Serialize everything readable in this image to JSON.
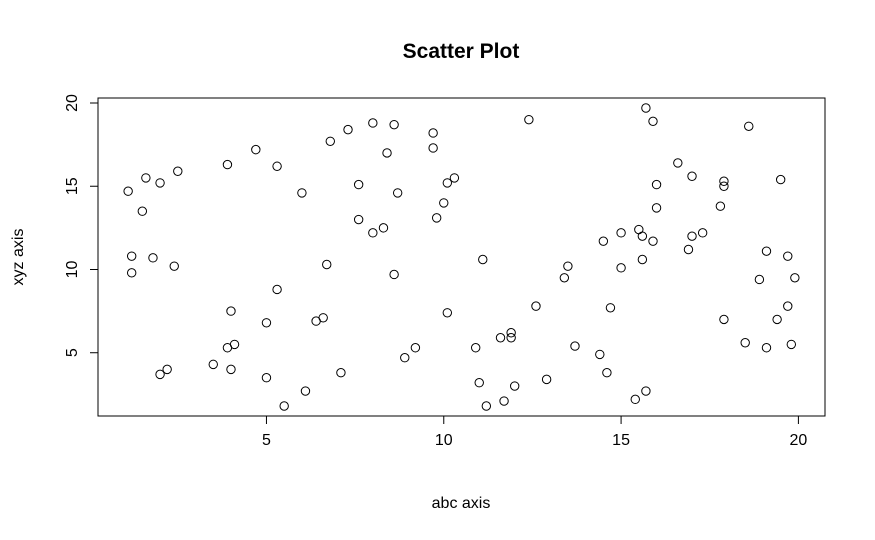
{
  "chart_data": {
    "type": "scatter",
    "title": "Scatter Plot",
    "xlabel": "abc axis",
    "ylabel": "xyz axis",
    "xlim": [
      0.25,
      20.75
    ],
    "ylim": [
      1.2,
      20.3
    ],
    "xticks": [
      5,
      10,
      15,
      20
    ],
    "yticks": [
      5,
      10,
      15,
      20
    ],
    "grid": false,
    "points": [
      [
        1.1,
        14.7
      ],
      [
        1.2,
        10.8
      ],
      [
        1.2,
        9.8
      ],
      [
        1.5,
        13.5
      ],
      [
        1.6,
        15.5
      ],
      [
        1.8,
        10.7
      ],
      [
        2.0,
        15.2
      ],
      [
        2.0,
        3.7
      ],
      [
        2.2,
        4.0
      ],
      [
        2.4,
        10.2
      ],
      [
        2.5,
        15.9
      ],
      [
        3.5,
        4.3
      ],
      [
        3.9,
        16.3
      ],
      [
        3.9,
        5.3
      ],
      [
        4.0,
        4.0
      ],
      [
        4.0,
        7.5
      ],
      [
        4.1,
        5.5
      ],
      [
        4.7,
        17.2
      ],
      [
        5.0,
        3.5
      ],
      [
        5.0,
        6.8
      ],
      [
        5.3,
        16.2
      ],
      [
        5.3,
        8.8
      ],
      [
        5.5,
        1.8
      ],
      [
        6.0,
        14.6
      ],
      [
        6.1,
        2.7
      ],
      [
        6.4,
        6.9
      ],
      [
        6.6,
        7.1
      ],
      [
        6.7,
        10.3
      ],
      [
        6.8,
        17.7
      ],
      [
        7.1,
        3.8
      ],
      [
        7.3,
        18.4
      ],
      [
        7.6,
        15.1
      ],
      [
        7.6,
        13.0
      ],
      [
        8.0,
        18.8
      ],
      [
        8.0,
        12.2
      ],
      [
        8.3,
        12.5
      ],
      [
        8.4,
        17.0
      ],
      [
        8.6,
        18.7
      ],
      [
        8.6,
        9.7
      ],
      [
        8.7,
        14.6
      ],
      [
        8.9,
        4.7
      ],
      [
        9.2,
        5.3
      ],
      [
        9.7,
        18.2
      ],
      [
        9.7,
        17.3
      ],
      [
        9.8,
        13.1
      ],
      [
        10.0,
        14.0
      ],
      [
        10.1,
        7.4
      ],
      [
        10.1,
        15.2
      ],
      [
        10.3,
        15.5
      ],
      [
        10.9,
        5.3
      ],
      [
        11.0,
        3.2
      ],
      [
        11.1,
        10.6
      ],
      [
        11.2,
        1.8
      ],
      [
        11.6,
        5.9
      ],
      [
        11.7,
        2.1
      ],
      [
        11.9,
        5.9
      ],
      [
        11.9,
        6.2
      ],
      [
        12.0,
        3.0
      ],
      [
        12.4,
        19.0
      ],
      [
        12.6,
        7.8
      ],
      [
        12.9,
        3.4
      ],
      [
        13.4,
        9.5
      ],
      [
        13.5,
        10.2
      ],
      [
        13.7,
        5.4
      ],
      [
        14.4,
        4.9
      ],
      [
        14.5,
        11.7
      ],
      [
        14.6,
        3.8
      ],
      [
        14.7,
        7.7
      ],
      [
        15.0,
        12.2
      ],
      [
        15.0,
        10.1
      ],
      [
        15.4,
        2.2
      ],
      [
        15.5,
        12.4
      ],
      [
        15.6,
        12.0
      ],
      [
        15.6,
        10.6
      ],
      [
        15.7,
        19.7
      ],
      [
        15.7,
        2.7
      ],
      [
        15.9,
        11.7
      ],
      [
        15.9,
        18.9
      ],
      [
        16.0,
        15.1
      ],
      [
        16.0,
        13.7
      ],
      [
        16.6,
        16.4
      ],
      [
        16.9,
        11.2
      ],
      [
        17.0,
        12.0
      ],
      [
        17.0,
        15.6
      ],
      [
        17.3,
        12.2
      ],
      [
        17.8,
        13.8
      ],
      [
        17.9,
        15.3
      ],
      [
        17.9,
        15.0
      ],
      [
        17.9,
        7.0
      ],
      [
        18.5,
        5.6
      ],
      [
        18.6,
        18.6
      ],
      [
        18.9,
        9.4
      ],
      [
        19.1,
        11.1
      ],
      [
        19.1,
        5.3
      ],
      [
        19.4,
        7.0
      ],
      [
        19.5,
        15.4
      ],
      [
        19.7,
        10.8
      ],
      [
        19.7,
        7.8
      ],
      [
        19.8,
        5.5
      ],
      [
        19.9,
        9.5
      ]
    ]
  }
}
